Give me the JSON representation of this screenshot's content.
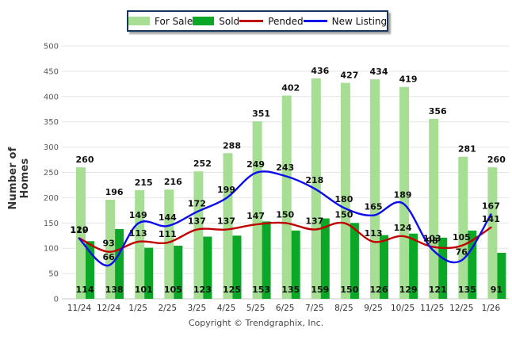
{
  "chart_data": {
    "type": "bar+line",
    "categories": [
      "11/24",
      "12/24",
      "1/25",
      "2/25",
      "3/25",
      "4/25",
      "5/25",
      "6/25",
      "7/25",
      "8/25",
      "9/25",
      "10/25",
      "11/25",
      "12/25",
      "1/26"
    ],
    "series": [
      {
        "name": "For Sale",
        "type": "bar",
        "color": "#A6DE93",
        "values": [
          260,
          196,
          215,
          216,
          252,
          288,
          351,
          402,
          436,
          427,
          434,
          419,
          356,
          281,
          260
        ]
      },
      {
        "name": "Sold",
        "type": "bar",
        "color": "#0BA827",
        "values": [
          114,
          138,
          101,
          105,
          123,
          125,
          153,
          135,
          159,
          150,
          126,
          129,
          121,
          135,
          91
        ]
      },
      {
        "name": "Pended",
        "type": "line",
        "color": "#C00000",
        "values": [
          120,
          93,
          113,
          111,
          137,
          137,
          147,
          150,
          137,
          150,
          113,
          124,
          103,
          105,
          141
        ]
      },
      {
        "name": "New Listing",
        "type": "line",
        "color": "#0B0BEE",
        "values": [
          119,
          66,
          149,
          144,
          172,
          199,
          249,
          243,
          218,
          180,
          165,
          189,
          98,
          76,
          167
        ]
      }
    ],
    "ylabel": "Number of Homes",
    "ylim": [
      0,
      500
    ],
    "ytick_step": 50,
    "grid": true,
    "legend_position": "top-center"
  },
  "footer": {
    "copyright": "Copyright © Trendgraphix, Inc."
  },
  "colors": {
    "grid": "#E4E4E4",
    "axis": "#C8C8C8",
    "tick_label": "#595959",
    "x_label": "#333333",
    "value_label": "#111111",
    "legend_border": "#17375E"
  }
}
